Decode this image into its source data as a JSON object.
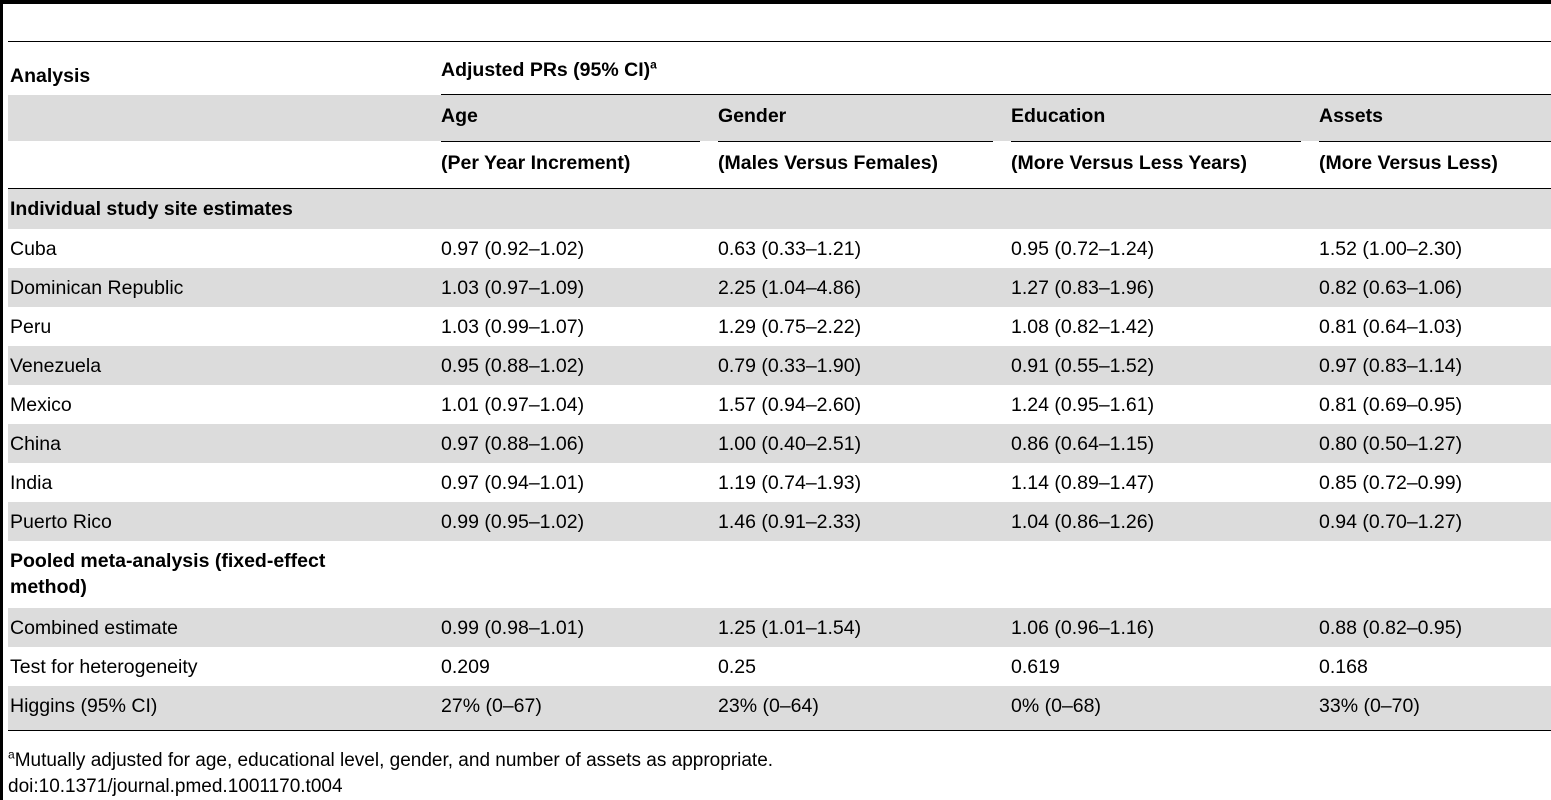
{
  "header": {
    "analysis": "Analysis",
    "group_label": "Adjusted PRs (95% CI)",
    "group_sup": "a",
    "columns": [
      {
        "name": "Age",
        "sub": "(Per Year Increment)"
      },
      {
        "name": "Gender",
        "sub": "(Males Versus Females)"
      },
      {
        "name": "Education",
        "sub": "(More Versus Less Years)"
      },
      {
        "name": "Assets",
        "sub": "(More Versus Less)"
      }
    ]
  },
  "sections": [
    {
      "title": "Individual study site estimates",
      "rows": [
        {
          "label": "Cuba",
          "age": "0.97 (0.92–1.02)",
          "gender": "0.63 (0.33–1.21)",
          "education": "0.95 (0.72–1.24)",
          "assets": "1.52 (1.00–2.30)"
        },
        {
          "label": "Dominican Republic",
          "age": "1.03 (0.97–1.09)",
          "gender": "2.25 (1.04–4.86)",
          "education": "1.27 (0.83–1.96)",
          "assets": "0.82 (0.63–1.06)"
        },
        {
          "label": "Peru",
          "age": "1.03 (0.99–1.07)",
          "gender": "1.29 (0.75–2.22)",
          "education": "1.08 (0.82–1.42)",
          "assets": "0.81 (0.64–1.03)"
        },
        {
          "label": "Venezuela",
          "age": "0.95 (0.88–1.02)",
          "gender": "0.79 (0.33–1.90)",
          "education": "0.91 (0.55–1.52)",
          "assets": "0.97 (0.83–1.14)"
        },
        {
          "label": "Mexico",
          "age": "1.01 (0.97–1.04)",
          "gender": "1.57 (0.94–2.60)",
          "education": "1.24 (0.95–1.61)",
          "assets": "0.81 (0.69–0.95)"
        },
        {
          "label": "China",
          "age": "0.97 (0.88–1.06)",
          "gender": "1.00 (0.40–2.51)",
          "education": "0.86 (0.64–1.15)",
          "assets": "0.80 (0.50–1.27)"
        },
        {
          "label": "India",
          "age": "0.97 (0.94–1.01)",
          "gender": "1.19 (0.74–1.93)",
          "education": "1.14 (0.89–1.47)",
          "assets": "0.85 (0.72–0.99)"
        },
        {
          "label": "Puerto Rico",
          "age": "0.99 (0.95–1.02)",
          "gender": "1.46 (0.91–2.33)",
          "education": "1.04 (0.86–1.26)",
          "assets": "0.94 (0.70–1.27)"
        }
      ]
    },
    {
      "title_line1": "Pooled meta-analysis (fixed-effect",
      "title_line2": "method)",
      "rows": [
        {
          "label": "Combined estimate",
          "age": "0.99 (0.98–1.01)",
          "gender": "1.25 (1.01–1.54)",
          "education": "1.06 (0.96–1.16)",
          "assets": "0.88 (0.82–0.95)"
        },
        {
          "label": "Test for heterogeneity",
          "age": "0.209",
          "gender": "0.25",
          "education": "0.619",
          "assets": "0.168"
        },
        {
          "label": "Higgins (95% CI)",
          "age": "27% (0–67)",
          "gender": "23% (0–64)",
          "education": "0% (0–68)",
          "assets": "33% (0–70)"
        }
      ]
    }
  ],
  "footnote": {
    "sup": "a",
    "text": "Mutually adjusted for age, educational level, gender, and number of assets as appropriate."
  },
  "doi": "doi:10.1371/journal.pmed.1001170.t004",
  "colors": {
    "shade": "#dcdcdc",
    "rule": "#000000"
  }
}
